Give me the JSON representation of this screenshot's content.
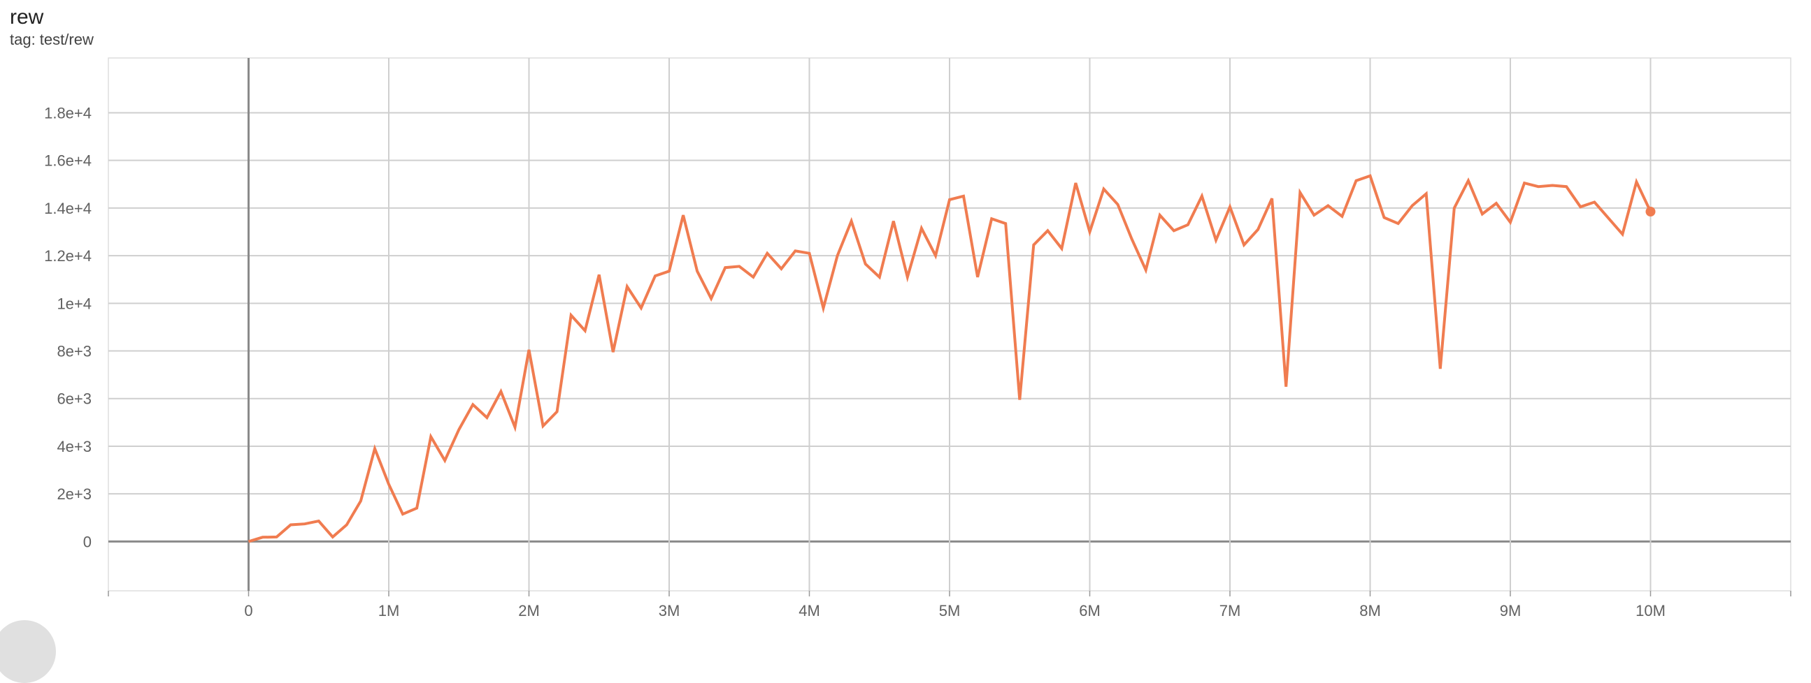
{
  "header": {
    "title": "rew",
    "tag": "tag: test/rew"
  },
  "chart_data": {
    "type": "line",
    "title": "rew",
    "subtitle": "tag: test/rew",
    "xlabel": "",
    "ylabel": "",
    "xlim": [
      -1000000,
      11000000
    ],
    "ylim": [
      -2070,
      20300
    ],
    "grid": true,
    "line_color": "#f07c50",
    "x_ticks": [
      {
        "v": 0,
        "label": "0"
      },
      {
        "v": 1000000,
        "label": "1M"
      },
      {
        "v": 2000000,
        "label": "2M"
      },
      {
        "v": 3000000,
        "label": "3M"
      },
      {
        "v": 4000000,
        "label": "4M"
      },
      {
        "v": 5000000,
        "label": "5M"
      },
      {
        "v": 6000000,
        "label": "6M"
      },
      {
        "v": 7000000,
        "label": "7M"
      },
      {
        "v": 8000000,
        "label": "8M"
      },
      {
        "v": 9000000,
        "label": "9M"
      },
      {
        "v": 10000000,
        "label": "10M"
      }
    ],
    "y_ticks": [
      {
        "v": 0,
        "label": "0"
      },
      {
        "v": 2000,
        "label": "2e+3"
      },
      {
        "v": 4000,
        "label": "4e+3"
      },
      {
        "v": 6000,
        "label": "6e+3"
      },
      {
        "v": 8000,
        "label": "8e+3"
      },
      {
        "v": 10000,
        "label": "1e+4"
      },
      {
        "v": 12000,
        "label": "1.2e+4"
      },
      {
        "v": 14000,
        "label": "1.4e+4"
      },
      {
        "v": 16000,
        "label": "1.6e+4"
      },
      {
        "v": 18000,
        "label": "1.8e+4"
      }
    ],
    "series": [
      {
        "x": [
          0,
          0.1,
          0.2,
          0.3,
          0.4,
          0.5,
          0.6,
          0.7,
          0.8,
          0.9,
          1.0,
          1.1,
          1.2,
          1.3,
          1.4,
          1.5,
          1.6,
          1.7,
          1.8,
          1.9,
          2.0,
          2.1,
          2.2,
          2.3,
          2.4,
          2.5,
          2.6,
          2.7,
          2.8,
          2.9,
          3.0,
          3.1,
          3.2,
          3.3,
          3.4,
          3.5,
          3.6,
          3.7,
          3.8,
          3.9,
          4.0,
          4.1,
          4.2,
          4.3,
          4.4,
          4.5,
          4.6,
          4.7,
          4.8,
          4.9,
          5.0,
          5.1,
          5.2,
          5.3,
          5.4,
          5.5,
          5.6,
          5.7,
          5.8,
          5.9,
          6.0,
          6.1,
          6.2,
          6.3,
          6.4,
          6.5,
          6.6,
          6.7,
          6.8,
          6.9,
          7.0,
          7.1,
          7.2,
          7.3,
          7.4,
          7.5,
          7.6,
          7.7,
          7.8,
          7.9,
          8.0,
          8.1,
          8.2,
          8.3,
          8.4,
          8.5,
          8.6,
          8.7,
          8.8,
          8.9,
          9.0,
          9.1,
          9.2,
          9.3,
          9.4,
          9.5,
          9.6,
          9.8,
          9.9,
          10.0
        ],
        "x_unit": "M",
        "y": [
          0,
          180,
          190,
          700,
          740,
          860,
          190,
          700,
          1700,
          3900,
          2400,
          1150,
          1400,
          4400,
          3400,
          4700,
          5750,
          5200,
          6300,
          4800,
          8050,
          4850,
          5450,
          9500,
          8850,
          11200,
          7950,
          10700,
          9800,
          11150,
          11350,
          13700,
          11350,
          10200,
          11500,
          11550,
          11100,
          12100,
          11450,
          12200,
          12100,
          9800,
          12000,
          13450,
          11650,
          11100,
          13450,
          11100,
          13150,
          12000,
          14350,
          14500,
          11100,
          13550,
          13350,
          5950,
          12450,
          13050,
          12300,
          15050,
          13000,
          14800,
          14150,
          12700,
          11400,
          13700,
          13050,
          13300,
          14500,
          12650,
          14050,
          12450,
          13100,
          14400,
          6500,
          14650,
          13700,
          14100,
          13650,
          15150,
          15350,
          13600,
          13350,
          14100,
          14600,
          7250,
          14000,
          15150,
          13750,
          14200,
          13400,
          15050,
          14900,
          14950,
          14900,
          14050,
          14250,
          12900,
          15100,
          13850
        ]
      }
    ]
  }
}
